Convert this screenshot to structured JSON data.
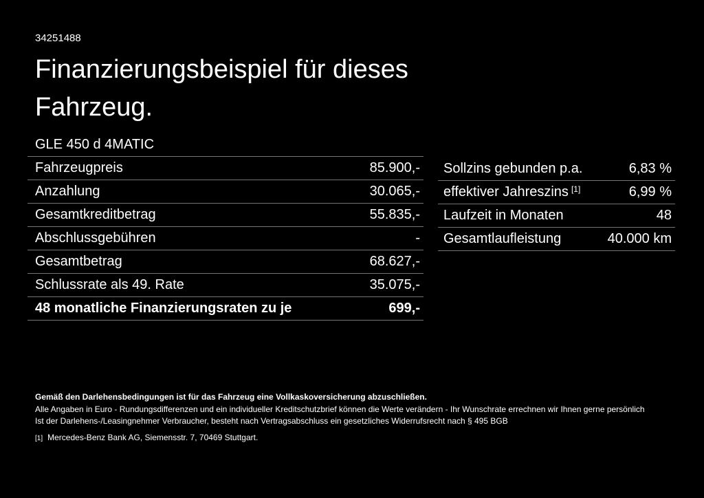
{
  "page": {
    "id_number": "34251488",
    "title": "Finanzierungsbeispiel für dieses Fahrzeug."
  },
  "finance_table": {
    "model": "GLE 450 d 4MATIC",
    "rows": [
      {
        "label": "Fahrzeugpreis",
        "value": "85.900,-"
      },
      {
        "label": "Anzahlung",
        "value": "30.065,-"
      },
      {
        "label": "Gesamtkreditbetrag",
        "value": "55.835,-"
      },
      {
        "label": "Abschlussgebühren",
        "value": "-"
      },
      {
        "label": "Gesamtbetrag",
        "value": "68.627,-"
      },
      {
        "label": "Schlussrate als 49. Rate",
        "value": "35.075,-"
      },
      {
        "label": "48 monatliche Finanzierungsraten zu je",
        "value": "699,-",
        "bold": true
      }
    ]
  },
  "conditions_table": {
    "rows": [
      {
        "label": "Sollzins gebunden p.a.",
        "value": "6,83 %"
      },
      {
        "label": "effektiver Jahreszins",
        "sup": "[1]",
        "value": "6,99 %"
      },
      {
        "label": "Laufzeit in Monaten",
        "value": "48"
      },
      {
        "label": "Gesamtlaufleistung",
        "value": "40.000 km"
      }
    ]
  },
  "footer": {
    "insurance_note": "Gemäß den Darlehensbedingungen ist für das Fahrzeug eine Vollkaskoversicherung abzuschließen.",
    "disclaimer_1": "Alle Angaben in Euro - Rundungsdifferenzen und ein individueller Kreditschutzbrief können die Werte verändern - Ihr Wunschrate errechnen wir Ihnen gerne persönlich",
    "disclaimer_2": "Ist der Darlehens-/Leasingnehmer Verbraucher, besteht nach Vertragsabschluss ein gesetzliches Widerrufsrecht nach § 495 BGB",
    "footnote_marker": "[1]",
    "footnote_text": "Mercedes-Benz Bank AG, Siemensstr. 7, 70469 Stuttgart."
  },
  "colors": {
    "background": "#000000",
    "text": "#ffffff",
    "separator": "#757575"
  }
}
